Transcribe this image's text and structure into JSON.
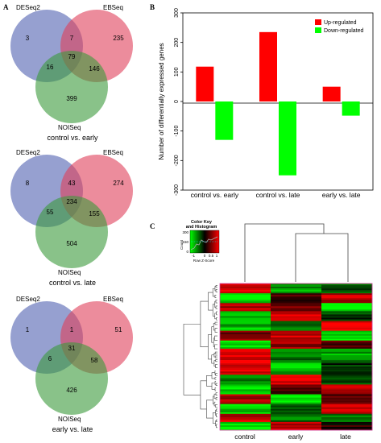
{
  "panels": {
    "a": "A",
    "b": "B",
    "c": "C"
  },
  "venns": [
    {
      "sets": [
        "DESeq2",
        "EBSeq",
        "NOISeq"
      ],
      "only_deseq2": "3",
      "deseq2_ebseq": "7",
      "only_ebseq": "235",
      "deseq2_noiseq": "16",
      "all_three": "79",
      "ebseq_noiseq": "146",
      "only_noiseq": "399",
      "caption": "control vs. early"
    },
    {
      "sets": [
        "DESeq2",
        "EBSeq",
        "NOISeq"
      ],
      "only_deseq2": "8",
      "deseq2_ebseq": "43",
      "only_ebseq": "274",
      "deseq2_noiseq": "55",
      "all_three": "234",
      "ebseq_noiseq": "155",
      "only_noiseq": "504",
      "caption": "control vs. late"
    },
    {
      "sets": [
        "DESeq2",
        "EBSeq",
        "NOISeq"
      ],
      "only_deseq2": "1",
      "deseq2_ebseq": "1",
      "only_ebseq": "51",
      "deseq2_noiseq": "6",
      "all_three": "31",
      "ebseq_noiseq": "58",
      "only_noiseq": "426",
      "caption": "early vs. late"
    }
  ],
  "venn_colors": {
    "deseq2": "#5060b0",
    "ebseq": "#e0405a",
    "noiseq": "#3a9a3a"
  },
  "chart_data": {
    "type": "bar",
    "categories": [
      "control vs. early",
      "control vs. late",
      "early vs. late"
    ],
    "series": [
      {
        "name": "Up-regulated",
        "color": "#ff0000",
        "values": [
          118,
          235,
          50
        ]
      },
      {
        "name": "Down-regulated",
        "color": "#00ff00",
        "values": [
          -130,
          -250,
          -48
        ]
      }
    ],
    "ylabel": "Number of differentially expressed genes",
    "ylim": [
      -300,
      300
    ],
    "yticks": [
      "-300",
      "-200",
      "-100",
      "0",
      "100",
      "200",
      "300"
    ],
    "legend_position": "top-right"
  },
  "heatmap": {
    "color_key_title": "Color Key",
    "histogram_title": "and Histogram",
    "count_label": "Count",
    "count_ticks": [
      "0",
      "150",
      "300"
    ],
    "scale_ticks": [
      "-1",
      "0",
      "0.5",
      "1"
    ],
    "scale_label": "Row Z-Score",
    "columns": [
      "control",
      "early",
      "late"
    ],
    "low_color": "#00ff00",
    "mid_color": "#000000",
    "high_color": "#ff0000"
  }
}
